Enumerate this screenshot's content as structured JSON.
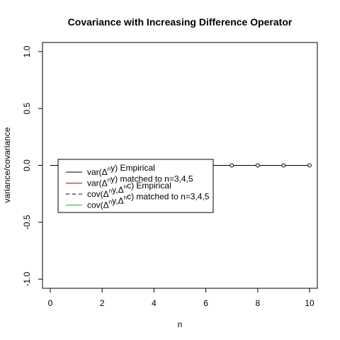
{
  "chart_data": {
    "type": "line",
    "title": "Covariance with Increasing Difference Operator",
    "xlabel": "n",
    "ylabel": "variance/covariance",
    "xlim": [
      -0.3,
      10.3
    ],
    "ylim": [
      -1.08,
      1.08
    ],
    "xticks": [
      0,
      2,
      4,
      6,
      8,
      10
    ],
    "yticks": [
      -1.0,
      -0.5,
      0.0,
      0.5,
      1.0
    ],
    "xtick_labels": [
      "0",
      "2",
      "4",
      "6",
      "8",
      "10"
    ],
    "ytick_labels": [
      "-1.0",
      "-0.5",
      "0.0",
      "0.5",
      "1.0"
    ],
    "series": [
      {
        "name": "var(Δny) Empirical",
        "legend_base": "var(Δ",
        "legend_sup": "n",
        "legend_rest": "y) Empirical",
        "color": "#000000",
        "dash": "",
        "x": [
          0,
          1,
          2,
          3,
          4,
          5,
          6,
          7,
          8,
          9,
          10
        ],
        "y": [
          0,
          0,
          0,
          0,
          0,
          0,
          0,
          0,
          0,
          0,
          0
        ],
        "markers": [
          7,
          8,
          9,
          10
        ]
      },
      {
        "name": "var(Δny) matched to n=3,4,5",
        "legend_base": "var(Δ",
        "legend_sup": "n",
        "legend_rest": "y) matched to n=3,4,5",
        "color": "#cc0000",
        "dash": "",
        "x": [],
        "y": [],
        "markers": []
      },
      {
        "name": "cov(Δny,Δnc) Empirical",
        "legend_base": "cov(Δ",
        "legend_sup": "n",
        "legend_mid": "y,Δ",
        "legend_sup2": "n",
        "legend_rest": "c) Empirical",
        "color": "#000000",
        "dash": "5,4",
        "x": [],
        "y": [],
        "markers": []
      },
      {
        "name": "cov(Δny,Δnc) matched to n=3,4,5",
        "legend_base": "cov(Δ",
        "legend_sup": "n",
        "legend_mid": "y,Δ",
        "legend_sup2": "n",
        "legend_rest": "c) matched to n=3,4,5",
        "color": "#00cc00",
        "dash": "",
        "x": [],
        "y": [],
        "markers": []
      }
    ],
    "legend_position": "center-left"
  }
}
